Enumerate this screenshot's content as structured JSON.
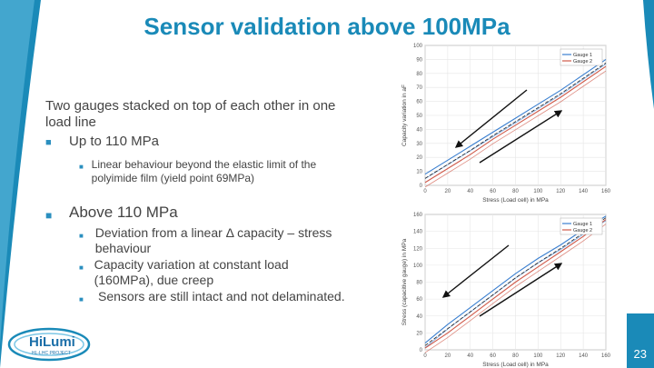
{
  "title": "Sensor validation above 100MPa",
  "intro": "Two gauges stacked on top of each other in one load line",
  "bullet1": "Up to 110 MPa",
  "bullet1_sub": "Linear behaviour beyond the elastic limit of the polyimide film (yield point 69MPa)",
  "bullet2": "Above 110 MPa",
  "bullet2_subs": [
    "Deviation from a linear Δ capacity – stress behaviour",
    "Capacity variation at constant load (160MPa), due creep",
    "Sensors are still intact and not delaminated."
  ],
  "logo_name": "HiLumi",
  "logo_sub": "HL-LHC PROJECT",
  "page_number": "23",
  "colors": {
    "title": "#1a8ab8",
    "bullet": "#2a8fbf",
    "gauge1": "#3a7fd0",
    "gauge2": "#d05a4a"
  },
  "chart_data": [
    {
      "type": "line",
      "xlabel": "Stress (Load cell) in MPa",
      "ylabel": "Capacity variation in aF",
      "xlim": [
        0,
        160
      ],
      "ylim": [
        0,
        100
      ],
      "x_ticks": [
        0,
        20,
        40,
        60,
        80,
        100,
        120,
        140,
        160
      ],
      "y_ticks": [
        0,
        10,
        20,
        30,
        40,
        50,
        60,
        70,
        80,
        90,
        100
      ],
      "legend_position": "top-right",
      "series": [
        {
          "name": "Gauge 1",
          "x": [
            0,
            20,
            40,
            60,
            80,
            100,
            120,
            140,
            160
          ],
          "y": [
            8,
            18,
            28,
            38,
            48,
            58,
            68,
            79,
            90
          ]
        },
        {
          "name": "Gauge 2",
          "x": [
            0,
            20,
            40,
            60,
            80,
            100,
            120,
            140,
            160
          ],
          "y": [
            2,
            12,
            22,
            33,
            43,
            53,
            63,
            74,
            85
          ]
        }
      ]
    },
    {
      "type": "line",
      "xlabel": "Stress (Load cell) in MPa",
      "ylabel": "Stress (capacitive gauge) in MPa",
      "xlim": [
        0,
        160
      ],
      "ylim": [
        0,
        160
      ],
      "x_ticks": [
        0,
        20,
        40,
        60,
        80,
        100,
        120,
        140,
        160
      ],
      "y_ticks": [
        0,
        20,
        40,
        60,
        80,
        100,
        120,
        140,
        160
      ],
      "legend_position": "top-right",
      "series": [
        {
          "name": "Gauge 1",
          "x": [
            0,
            20,
            40,
            60,
            80,
            100,
            120,
            140,
            160
          ],
          "y": [
            8,
            30,
            50,
            70,
            90,
            108,
            124,
            142,
            158
          ]
        },
        {
          "name": "Gauge 2",
          "x": [
            0,
            20,
            40,
            60,
            80,
            100,
            120,
            140,
            160
          ],
          "y": [
            2,
            20,
            40,
            60,
            80,
            98,
            116,
            134,
            154
          ]
        }
      ]
    }
  ]
}
